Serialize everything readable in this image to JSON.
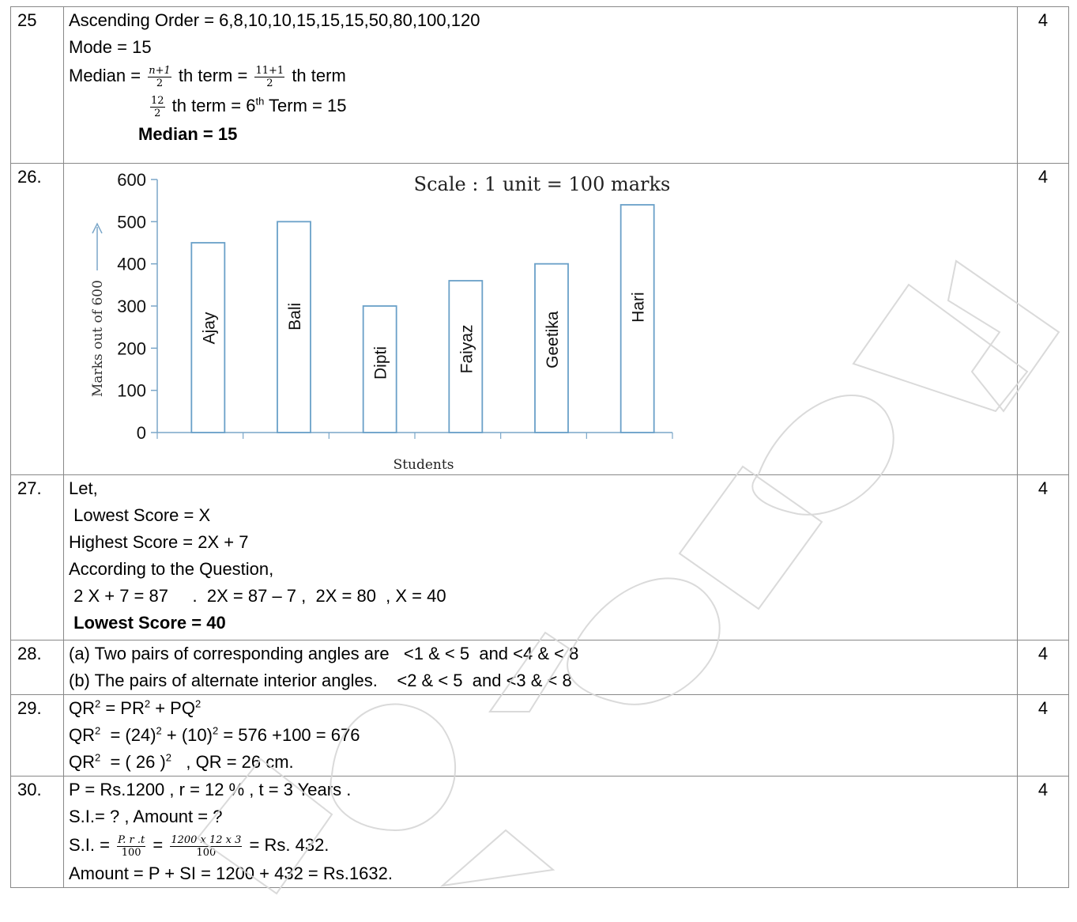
{
  "q25": {
    "num": "25",
    "marks": "4",
    "line1": "Ascending Order = 6,8,10,10,15,15,15,50,80,100,120",
    "line2": "Mode = 15",
    "median_label": "Median =",
    "frac1_num": "n+1",
    "frac1_den": "2",
    "th_term_eq": "th term =",
    "frac2_num": "11+1",
    "frac2_den": "2",
    "th_term": "th term",
    "frac3_num": "12",
    "frac3_den": "2",
    "th_term_eq2": "th term = 6",
    "sup_th": "th",
    "term_result": "Term  = 15",
    "answer": "Median = 15"
  },
  "q26": {
    "num": "26.",
    "marks": "4",
    "chart_data": {
      "type": "bar",
      "title": "Scale : 1 unit = 100 marks",
      "xlabel": "Students",
      "ylabel": "Marks out of 600",
      "categories": [
        "Ajay",
        "Bali",
        "Dipti",
        "Faiyaz",
        "Geetika",
        "Hari"
      ],
      "values": [
        450,
        500,
        300,
        360,
        400,
        540
      ],
      "yticks": [
        "0",
        "100",
        "200",
        "300",
        "400",
        "500",
        "600"
      ],
      "ylim": [
        0,
        600
      ]
    }
  },
  "q27": {
    "num": "27.",
    "marks": "4",
    "lines": [
      "Let,",
      " Lowest Score = X",
      "Highest Score = 2X + 7",
      "According to the Question,",
      " 2 X + 7 = 87     .  2X = 87 – 7 ,  2X = 80  , X = 40"
    ],
    "answer": " Lowest Score = 40"
  },
  "q28": {
    "num": "28.",
    "marks": "4",
    "line1": "(a) Two pairs of corresponding angles are   <1 & < 5  and <4 & < 8",
    "line2": "(b) The pairs of alternate interior angles.    <2 & < 5  and <3 & < 8"
  },
  "q29": {
    "num": "29.",
    "marks": "4",
    "l1a": "QR",
    "l1b": " = PR",
    "l1c": " + PQ",
    "l2a": "QR",
    "l2b": "  = (24)",
    "l2c": " + (10)",
    "l2d": " = 576 +100 = 676",
    "l3a": "QR",
    "l3b": "  = ( 26 )",
    "l3c": "   , QR = 26 cm.",
    "sq": "2"
  },
  "q30": {
    "num": "30.",
    "marks": "4",
    "line1": "P = Rs.1200 , r = 12 % , t = 3 Years .",
    "line2": "S.I.= ? ,  Amount = ?",
    "si_label": "S.I. =",
    "frac1_num": "P. r .t",
    "frac1_den": "100",
    "eq": "=",
    "frac2_num": "1200 x 12 x 3",
    "frac2_den": "100",
    "si_result": "= Rs. 432.",
    "line4": "Amount = P + SI = 1200 + 432 = Rs.1632."
  }
}
